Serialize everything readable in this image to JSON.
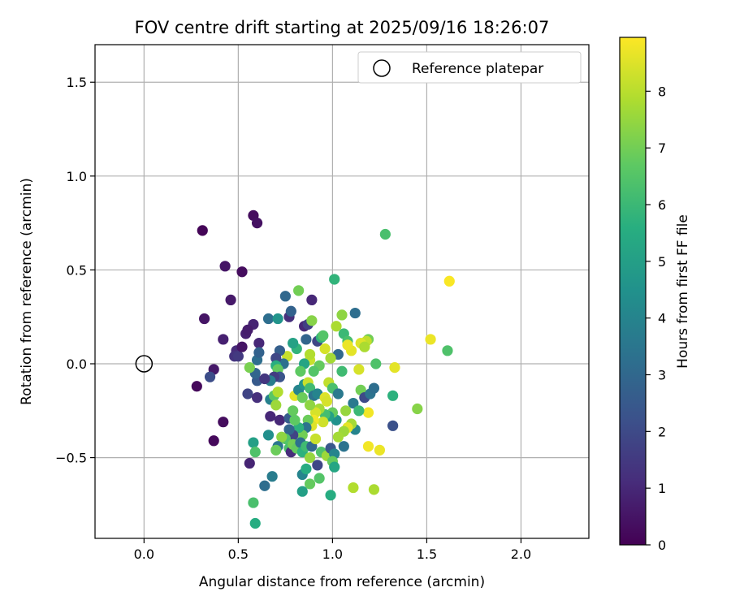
{
  "chart_data": {
    "type": "scatter",
    "title": "FOV centre drift starting at 2025/09/16 18:26:07",
    "xlabel": "Angular distance from reference (arcmin)",
    "ylabel": "Rotation from reference (arcmin)",
    "xlim": [
      -0.26,
      2.36
    ],
    "ylim": [
      -0.93,
      1.7
    ],
    "xticks": [
      0.0,
      0.5,
      1.0,
      1.5,
      2.0
    ],
    "xtick_labels": [
      "0.0",
      "0.5",
      "1.0",
      "1.5",
      "2.0"
    ],
    "yticks": [
      -0.5,
      0.0,
      0.5,
      1.0,
      1.5
    ],
    "ytick_labels": [
      "−0.5",
      "0.0",
      "0.5",
      "1.0",
      "1.5"
    ],
    "grid": true,
    "legend": {
      "position": "top-right",
      "entries": [
        "Reference platepar"
      ]
    },
    "reference_point": {
      "x": 0.0,
      "y": 0.0,
      "label": "Reference platepar"
    },
    "colorbar": {
      "label": "Hours from first FF file",
      "range": [
        0,
        8.95
      ],
      "ticks": [
        0,
        1,
        2,
        3,
        4,
        5,
        6,
        7,
        8
      ],
      "tick_labels": [
        "0",
        "1",
        "2",
        "3",
        "4",
        "5",
        "6",
        "7",
        "8"
      ],
      "colormap": "viridis"
    },
    "points": [
      {
        "x": 0.31,
        "y": 0.71,
        "h": 0.1
      },
      {
        "x": 0.58,
        "y": 0.79,
        "h": 0.3
      },
      {
        "x": 0.6,
        "y": 0.75,
        "h": 0.4
      },
      {
        "x": 0.43,
        "y": 0.52,
        "h": 0.5
      },
      {
        "x": 0.52,
        "y": 0.49,
        "h": 0.3
      },
      {
        "x": 0.46,
        "y": 0.34,
        "h": 0.6
      },
      {
        "x": 0.32,
        "y": 0.24,
        "h": 0.5
      },
      {
        "x": 0.58,
        "y": 0.21,
        "h": 0.9
      },
      {
        "x": 0.54,
        "y": 0.16,
        "h": 0.8
      },
      {
        "x": 0.55,
        "y": 0.18,
        "h": 0.7
      },
      {
        "x": 0.42,
        "y": 0.13,
        "h": 0.8
      },
      {
        "x": 0.61,
        "y": 0.11,
        "h": 1.0
      },
      {
        "x": 0.49,
        "y": 0.07,
        "h": 1.1
      },
      {
        "x": 0.48,
        "y": 0.04,
        "h": 1.3
      },
      {
        "x": 0.5,
        "y": 0.04,
        "h": 1.5
      },
      {
        "x": 0.52,
        "y": 0.09,
        "h": 0.5
      },
      {
        "x": 0.37,
        "y": -0.03,
        "h": 0.6
      },
      {
        "x": 0.35,
        "y": -0.07,
        "h": 2.1
      },
      {
        "x": 0.28,
        "y": -0.12,
        "h": 0.2
      },
      {
        "x": 0.42,
        "y": -0.31,
        "h": 0.3
      },
      {
        "x": 0.37,
        "y": -0.41,
        "h": 0.2
      },
      {
        "x": 0.56,
        "y": -0.53,
        "h": 0.9
      },
      {
        "x": 0.55,
        "y": -0.16,
        "h": 1.8
      },
      {
        "x": 0.6,
        "y": -0.18,
        "h": 1.2
      },
      {
        "x": 0.6,
        "y": -0.09,
        "h": 2.5
      },
      {
        "x": 0.59,
        "y": -0.05,
        "h": 2.9
      },
      {
        "x": 0.6,
        "y": 0.02,
        "h": 3.2
      },
      {
        "x": 0.61,
        "y": 0.06,
        "h": 2.8
      },
      {
        "x": 0.66,
        "y": 0.24,
        "h": 3.2
      },
      {
        "x": 0.71,
        "y": 0.24,
        "h": 4.6
      },
      {
        "x": 0.75,
        "y": 0.36,
        "h": 3.0
      },
      {
        "x": 0.77,
        "y": 0.25,
        "h": 1.2
      },
      {
        "x": 0.78,
        "y": 0.28,
        "h": 2.8
      },
      {
        "x": 0.82,
        "y": 0.39,
        "h": 7.0
      },
      {
        "x": 0.85,
        "y": 0.2,
        "h": 1.0
      },
      {
        "x": 0.86,
        "y": 0.13,
        "h": 2.9
      },
      {
        "x": 0.87,
        "y": 0.21,
        "h": 1.7
      },
      {
        "x": 0.89,
        "y": 0.34,
        "h": 1.0
      },
      {
        "x": 0.89,
        "y": 0.23,
        "h": 7.3
      },
      {
        "x": 0.92,
        "y": 0.12,
        "h": 1.9
      },
      {
        "x": 0.94,
        "y": 0.14,
        "h": 5.8
      },
      {
        "x": 0.95,
        "y": 0.15,
        "h": 6.5
      },
      {
        "x": 1.01,
        "y": 0.45,
        "h": 5.8
      },
      {
        "x": 1.02,
        "y": 0.2,
        "h": 7.8
      },
      {
        "x": 1.05,
        "y": 0.26,
        "h": 7.4
      },
      {
        "x": 1.06,
        "y": 0.16,
        "h": 6.0
      },
      {
        "x": 1.08,
        "y": 0.12,
        "h": 6.3
      },
      {
        "x": 1.12,
        "y": 0.27,
        "h": 3.2
      },
      {
        "x": 1.28,
        "y": 0.69,
        "h": 6.3
      },
      {
        "x": 1.62,
        "y": 0.44,
        "h": 8.9
      },
      {
        "x": 1.52,
        "y": 0.13,
        "h": 8.7
      },
      {
        "x": 1.61,
        "y": 0.07,
        "h": 6.4
      },
      {
        "x": 1.33,
        "y": -0.02,
        "h": 8.6
      },
      {
        "x": 1.23,
        "y": 0.0,
        "h": 6.4
      },
      {
        "x": 1.19,
        "y": 0.13,
        "h": 7.0
      },
      {
        "x": 1.18,
        "y": 0.12,
        "h": 8.1
      },
      {
        "x": 1.15,
        "y": 0.11,
        "h": 8.5
      },
      {
        "x": 1.17,
        "y": 0.09,
        "h": 7.8
      },
      {
        "x": 1.1,
        "y": 0.07,
        "h": 8.6
      },
      {
        "x": 1.08,
        "y": 0.1,
        "h": 8.7
      },
      {
        "x": 1.03,
        "y": 0.05,
        "h": 3.0
      },
      {
        "x": 0.99,
        "y": 0.03,
        "h": 7.7
      },
      {
        "x": 0.96,
        "y": 0.08,
        "h": 8.4
      },
      {
        "x": 0.93,
        "y": -0.01,
        "h": 6.8
      },
      {
        "x": 0.9,
        "y": -0.04,
        "h": 6.5
      },
      {
        "x": 0.88,
        "y": 0.02,
        "h": 8.2
      },
      {
        "x": 0.88,
        "y": 0.05,
        "h": 7.9
      },
      {
        "x": 0.85,
        "y": 0.0,
        "h": 5.2
      },
      {
        "x": 0.83,
        "y": -0.04,
        "h": 6.7
      },
      {
        "x": 0.81,
        "y": 0.08,
        "h": 5.8
      },
      {
        "x": 0.79,
        "y": 0.11,
        "h": 5.1
      },
      {
        "x": 0.76,
        "y": 0.04,
        "h": 8.2
      },
      {
        "x": 0.74,
        "y": 0.0,
        "h": 3.3
      },
      {
        "x": 0.72,
        "y": 0.07,
        "h": 2.7
      },
      {
        "x": 0.7,
        "y": 0.03,
        "h": 1.9
      },
      {
        "x": 0.7,
        "y": -0.01,
        "h": 5.6
      },
      {
        "x": 0.71,
        "y": -0.03,
        "h": 6.8
      },
      {
        "x": 0.72,
        "y": -0.07,
        "h": 2.3
      },
      {
        "x": 0.69,
        "y": -0.07,
        "h": 1.6
      },
      {
        "x": 0.67,
        "y": -0.09,
        "h": 3.8
      },
      {
        "x": 0.64,
        "y": -0.08,
        "h": 1.4
      },
      {
        "x": 0.56,
        "y": -0.02,
        "h": 7.1
      },
      {
        "x": 0.67,
        "y": -0.19,
        "h": 3.9
      },
      {
        "x": 0.69,
        "y": -0.17,
        "h": 6.6
      },
      {
        "x": 0.71,
        "y": -0.15,
        "h": 7.9
      },
      {
        "x": 0.7,
        "y": -0.22,
        "h": 7.6
      },
      {
        "x": 0.67,
        "y": -0.28,
        "h": 1.0
      },
      {
        "x": 0.72,
        "y": -0.3,
        "h": 1.0
      },
      {
        "x": 0.77,
        "y": -0.29,
        "h": 2.6
      },
      {
        "x": 0.79,
        "y": -0.25,
        "h": 6.8
      },
      {
        "x": 0.8,
        "y": -0.17,
        "h": 8.6
      },
      {
        "x": 0.82,
        "y": -0.14,
        "h": 4.0
      },
      {
        "x": 0.84,
        "y": -0.18,
        "h": 6.9
      },
      {
        "x": 0.85,
        "y": -0.11,
        "h": 4.6
      },
      {
        "x": 0.87,
        "y": -0.1,
        "h": 8.2
      },
      {
        "x": 0.88,
        "y": -0.13,
        "h": 6.1
      },
      {
        "x": 0.9,
        "y": -0.17,
        "h": 3.4
      },
      {
        "x": 0.92,
        "y": -0.16,
        "h": 4.0
      },
      {
        "x": 0.96,
        "y": -0.18,
        "h": 8.5
      },
      {
        "x": 0.97,
        "y": -0.2,
        "h": 8.4
      },
      {
        "x": 0.98,
        "y": -0.1,
        "h": 8.1
      },
      {
        "x": 1.0,
        "y": -0.13,
        "h": 6.3
      },
      {
        "x": 1.03,
        "y": -0.16,
        "h": 3.6
      },
      {
        "x": 1.05,
        "y": -0.04,
        "h": 6.1
      },
      {
        "x": 1.11,
        "y": -0.21,
        "h": 3.6
      },
      {
        "x": 1.14,
        "y": -0.03,
        "h": 8.4
      },
      {
        "x": 1.15,
        "y": -0.14,
        "h": 7.0
      },
      {
        "x": 1.17,
        "y": -0.18,
        "h": 2.0
      },
      {
        "x": 1.2,
        "y": -0.16,
        "h": 3.4
      },
      {
        "x": 1.22,
        "y": -0.13,
        "h": 3.2
      },
      {
        "x": 1.32,
        "y": -0.17,
        "h": 5.7
      },
      {
        "x": 1.32,
        "y": -0.33,
        "h": 2.2
      },
      {
        "x": 1.45,
        "y": -0.24,
        "h": 7.3
      },
      {
        "x": 1.19,
        "y": -0.26,
        "h": 8.8
      },
      {
        "x": 1.14,
        "y": -0.25,
        "h": 6.0
      },
      {
        "x": 1.07,
        "y": -0.25,
        "h": 7.5
      },
      {
        "x": 1.12,
        "y": -0.35,
        "h": 4.0
      },
      {
        "x": 1.1,
        "y": -0.32,
        "h": 7.7
      },
      {
        "x": 1.08,
        "y": -0.34,
        "h": 8.6
      },
      {
        "x": 1.06,
        "y": -0.36,
        "h": 7.6
      },
      {
        "x": 1.03,
        "y": -0.39,
        "h": 7.7
      },
      {
        "x": 1.02,
        "y": -0.3,
        "h": 4.5
      },
      {
        "x": 1.0,
        "y": -0.26,
        "h": 6.8
      },
      {
        "x": 0.98,
        "y": -0.28,
        "h": 5.1
      },
      {
        "x": 0.96,
        "y": -0.27,
        "h": 6.2
      },
      {
        "x": 0.95,
        "y": -0.31,
        "h": 8.3
      },
      {
        "x": 0.93,
        "y": -0.24,
        "h": 7.7
      },
      {
        "x": 0.91,
        "y": -0.26,
        "h": 8.4
      },
      {
        "x": 0.9,
        "y": -0.3,
        "h": 8.8
      },
      {
        "x": 0.89,
        "y": -0.33,
        "h": 8.5
      },
      {
        "x": 0.88,
        "y": -0.22,
        "h": 7.4
      },
      {
        "x": 0.87,
        "y": -0.3,
        "h": 6.9
      },
      {
        "x": 0.86,
        "y": -0.34,
        "h": 3.4
      },
      {
        "x": 0.84,
        "y": -0.38,
        "h": 7.0
      },
      {
        "x": 0.82,
        "y": -0.34,
        "h": 5.7
      },
      {
        "x": 0.8,
        "y": -0.3,
        "h": 6.7
      },
      {
        "x": 0.79,
        "y": -0.38,
        "h": 1.8
      },
      {
        "x": 0.77,
        "y": -0.35,
        "h": 2.9
      },
      {
        "x": 0.75,
        "y": -0.4,
        "h": 6.5
      },
      {
        "x": 0.73,
        "y": -0.39,
        "h": 7.4
      },
      {
        "x": 0.71,
        "y": -0.44,
        "h": 3.5
      },
      {
        "x": 0.7,
        "y": -0.46,
        "h": 6.9
      },
      {
        "x": 0.66,
        "y": -0.38,
        "h": 4.4
      },
      {
        "x": 0.77,
        "y": -0.45,
        "h": 6.3
      },
      {
        "x": 0.78,
        "y": -0.47,
        "h": 1.1
      },
      {
        "x": 0.79,
        "y": -0.43,
        "h": 7.0
      },
      {
        "x": 0.81,
        "y": -0.45,
        "h": 6.8
      },
      {
        "x": 0.83,
        "y": -0.42,
        "h": 3.3
      },
      {
        "x": 0.84,
        "y": -0.47,
        "h": 5.7
      },
      {
        "x": 0.86,
        "y": -0.44,
        "h": 6.1
      },
      {
        "x": 0.88,
        "y": -0.5,
        "h": 7.5
      },
      {
        "x": 0.89,
        "y": -0.44,
        "h": 3.0
      },
      {
        "x": 0.91,
        "y": -0.4,
        "h": 8.2
      },
      {
        "x": 0.92,
        "y": -0.54,
        "h": 1.9
      },
      {
        "x": 0.94,
        "y": -0.47,
        "h": 6.4
      },
      {
        "x": 0.97,
        "y": -0.49,
        "h": 7.6
      },
      {
        "x": 0.99,
        "y": -0.45,
        "h": 2.4
      },
      {
        "x": 1.01,
        "y": -0.48,
        "h": 4.0
      },
      {
        "x": 1.0,
        "y": -0.52,
        "h": 6.8
      },
      {
        "x": 1.01,
        "y": -0.55,
        "h": 5.3
      },
      {
        "x": 1.06,
        "y": -0.44,
        "h": 3.4
      },
      {
        "x": 0.58,
        "y": -0.42,
        "h": 5.0
      },
      {
        "x": 0.59,
        "y": -0.47,
        "h": 6.4
      },
      {
        "x": 0.68,
        "y": -0.6,
        "h": 3.7
      },
      {
        "x": 0.64,
        "y": -0.65,
        "h": 3.2
      },
      {
        "x": 0.84,
        "y": -0.59,
        "h": 4.0
      },
      {
        "x": 0.86,
        "y": -0.56,
        "h": 5.5
      },
      {
        "x": 0.88,
        "y": -0.64,
        "h": 6.8
      },
      {
        "x": 0.84,
        "y": -0.68,
        "h": 5.0
      },
      {
        "x": 0.93,
        "y": -0.61,
        "h": 6.5
      },
      {
        "x": 0.99,
        "y": -0.7,
        "h": 5.5
      },
      {
        "x": 0.58,
        "y": -0.74,
        "h": 6.3
      },
      {
        "x": 0.59,
        "y": -0.85,
        "h": 5.5
      },
      {
        "x": 1.11,
        "y": -0.66,
        "h": 7.9
      },
      {
        "x": 1.22,
        "y": -0.67,
        "h": 7.8
      },
      {
        "x": 1.19,
        "y": -0.44,
        "h": 8.8
      },
      {
        "x": 1.25,
        "y": -0.46,
        "h": 8.7
      }
    ]
  }
}
